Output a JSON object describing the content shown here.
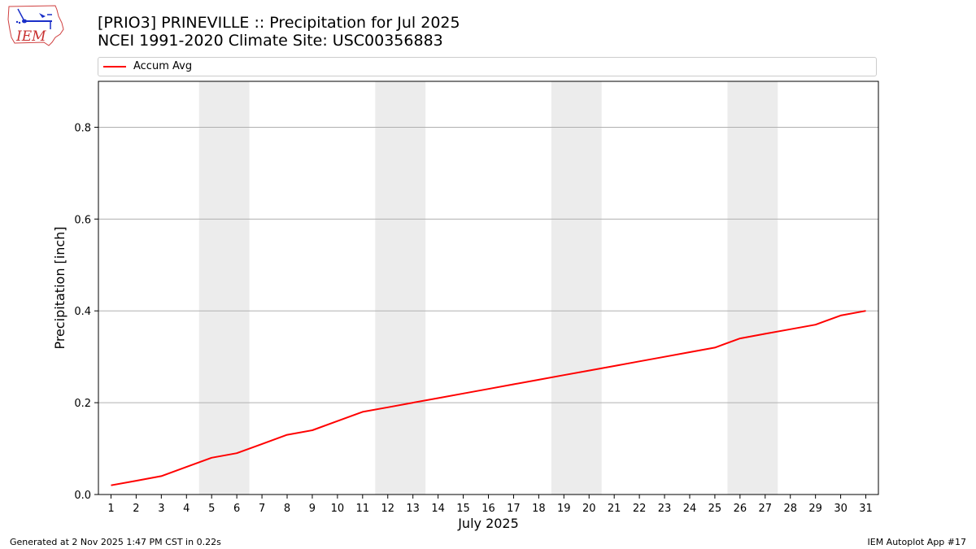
{
  "header": {
    "title_line1": "[PRIO3] PRINEVILLE :: Precipitation for Jul 2025",
    "title_line2": "NCEI 1991-2020 Climate Site: USC00356883",
    "logo_text": "IEM"
  },
  "footer": {
    "generated": "Generated at 2 Nov 2025 1:47 PM CST in 0.22s",
    "app": "IEM Autoplot App #17"
  },
  "colors": {
    "series": "#ff0000",
    "weekend": "#ececec",
    "grid": "#b0b0b0"
  },
  "chart_data": {
    "type": "line",
    "xlabel": "July 2025",
    "ylabel": "Precipitation [inch]",
    "xlim": [
      0.5,
      31.5
    ],
    "ylim": [
      0,
      0.9
    ],
    "yticks": [
      0.0,
      0.2,
      0.4,
      0.6,
      0.8
    ],
    "ytick_labels": [
      "0.0",
      "0.2",
      "0.4",
      "0.6",
      "0.8"
    ],
    "xticks": [
      1,
      2,
      3,
      4,
      5,
      6,
      7,
      8,
      9,
      10,
      11,
      12,
      13,
      14,
      15,
      16,
      17,
      18,
      19,
      20,
      21,
      22,
      23,
      24,
      25,
      26,
      27,
      28,
      29,
      30,
      31
    ],
    "grid": "horizontal",
    "legend_position": "top",
    "weekend_days": [
      [
        5,
        6
      ],
      [
        12,
        13
      ],
      [
        19,
        20
      ],
      [
        26,
        27
      ]
    ],
    "series": [
      {
        "name": "Accum Avg",
        "color": "#ff0000",
        "x": [
          1,
          2,
          3,
          4,
          5,
          6,
          7,
          8,
          9,
          10,
          11,
          12,
          13,
          14,
          15,
          16,
          17,
          18,
          19,
          20,
          21,
          22,
          23,
          24,
          25,
          26,
          27,
          28,
          29,
          30,
          31
        ],
        "values": [
          0.02,
          0.03,
          0.04,
          0.06,
          0.08,
          0.09,
          0.11,
          0.13,
          0.14,
          0.16,
          0.18,
          0.19,
          0.2,
          0.21,
          0.22,
          0.23,
          0.24,
          0.25,
          0.26,
          0.27,
          0.28,
          0.29,
          0.3,
          0.31,
          0.32,
          0.34,
          0.35,
          0.36,
          0.37,
          0.39,
          0.4
        ]
      }
    ]
  }
}
